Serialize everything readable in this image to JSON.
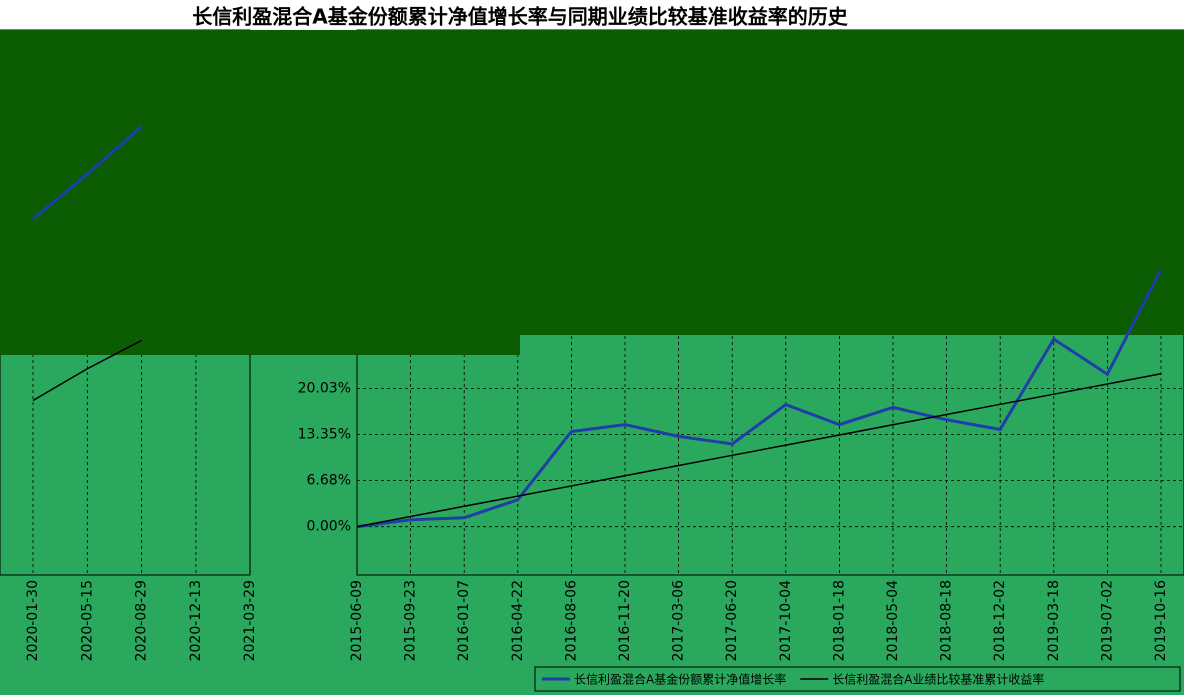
{
  "chart_data": [
    {
      "type": "line",
      "title": "长信利盈混合A基金份额累计净值增长率与同期业绩比较基准收益率的历史",
      "categories": [
        "2015-06-09",
        "2015-09-23",
        "2016-01-07",
        "2016-04-22",
        "2016-08-06",
        "2016-11-20",
        "2017-03-06",
        "2017-06-20",
        "2017-10-04",
        "2018-01-18",
        "2018-05-04",
        "2018-08-18",
        "2018-12-02",
        "2019-03-18",
        "2019-07-02",
        "2019-10-16"
      ],
      "series": [
        {
          "name": "长信利盈混合A基金份额累计净值增长率",
          "color": "#1f3ea8",
          "values": [
            0,
            1.0,
            1.3,
            3.9,
            13.8,
            14.8,
            13.1,
            12.0,
            17.7,
            14.8,
            17.3,
            15.5,
            14.1,
            27.2,
            22.1,
            37.3
          ]
        },
        {
          "name": "长信利盈混合A业绩比较基准累计收益率",
          "color": "#000000",
          "values": [
            0,
            1.48,
            2.96,
            4.43,
            5.91,
            7.39,
            8.87,
            10.35,
            11.82,
            13.3,
            14.78,
            16.26,
            17.74,
            19.21,
            20.69,
            22.17
          ]
        }
      ],
      "ylim": [
        -7,
        72
      ],
      "yticks": [
        {
          "value": 0,
          "label": "0.00%"
        },
        {
          "value": 6.68,
          "label": "6.68%"
        },
        {
          "value": 13.35,
          "label": "13.35%"
        },
        {
          "value": 20.03,
          "label": "20.03%"
        }
      ],
      "grid": true
    },
    {
      "type": "line",
      "categories": [
        "2020-01-30",
        "2020-05-15",
        "2020-08-29",
        "2020-12-13",
        "2021-03-29"
      ],
      "series": [
        {
          "color": "#1f3ea8",
          "values": [
            44.6,
            51.1,
            58,
            null,
            null
          ]
        },
        {
          "color": "#000000",
          "values": [
            18.3,
            22.9,
            27.0,
            null,
            null
          ]
        }
      ],
      "ylim": [
        -7,
        72
      ],
      "grid": true
    }
  ]
}
